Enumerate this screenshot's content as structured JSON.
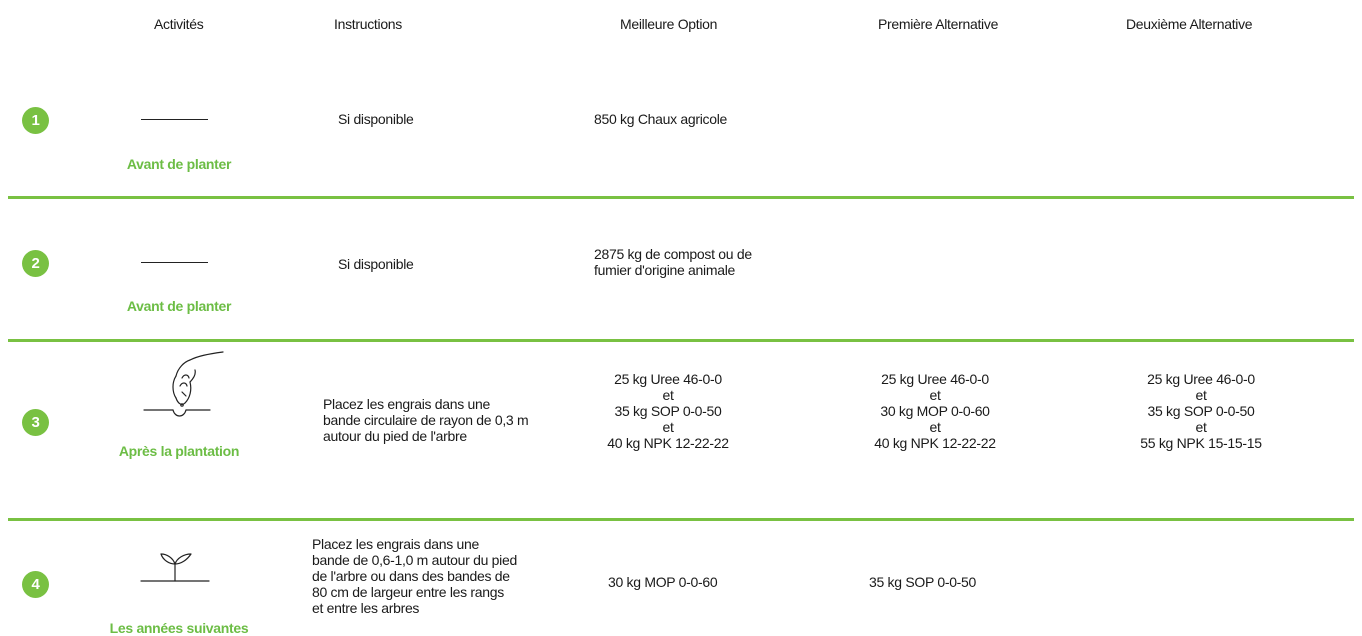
{
  "headers": {
    "activities": "Activités",
    "instructions": "Instructions",
    "best": "Meilleure Option",
    "alt1": "Première Alternative",
    "alt2": "Deuxième Alternative"
  },
  "rows": [
    {
      "number": "1",
      "activity": "Avant de planter",
      "icon": "dash-line",
      "instruction": "Si disponible",
      "best": "850 kg Chaux agricole",
      "alt1": "",
      "alt2": ""
    },
    {
      "number": "2",
      "activity": "Avant de planter",
      "icon": "dash-line",
      "instruction": "Si disponible",
      "best": "2875 kg de compost ou de\nfumier d'origine animale",
      "alt1": "",
      "alt2": ""
    },
    {
      "number": "3",
      "activity": "Après la plantation",
      "icon": "hand-placing-fertilizer-icon",
      "instruction": "Placez les engrais dans une\nbande circulaire de rayon de 0,3 m\nautour du pied de l'arbre",
      "best": "25 kg Uree 46-0-0\net\n35 kg SOP 0-0-50\net\n40 kg NPK 12-22-22",
      "alt1": "25 kg Uree 46-0-0\net\n30 kg MOP 0-0-60\net\n40 kg NPK 12-22-22",
      "alt2": "25 kg Uree 46-0-0\net\n35 kg SOP 0-0-50\net\n55 kg NPK 15-15-15"
    },
    {
      "number": "4",
      "activity": "Les années suivantes",
      "icon": "seedling-icon",
      "instruction": "Placez les engrais dans une\nbande de 0,6-1,0 m autour du pied\nde l'arbre ou dans des bandes de\n80 cm de largeur entre les rangs\net entre les arbres",
      "best": "30 kg MOP 0-0-60",
      "alt1": "35 kg SOP 0-0-50",
      "alt2": ""
    }
  ],
  "colors": {
    "accent": "#79c142",
    "activity_text": "#6cbd45"
  }
}
